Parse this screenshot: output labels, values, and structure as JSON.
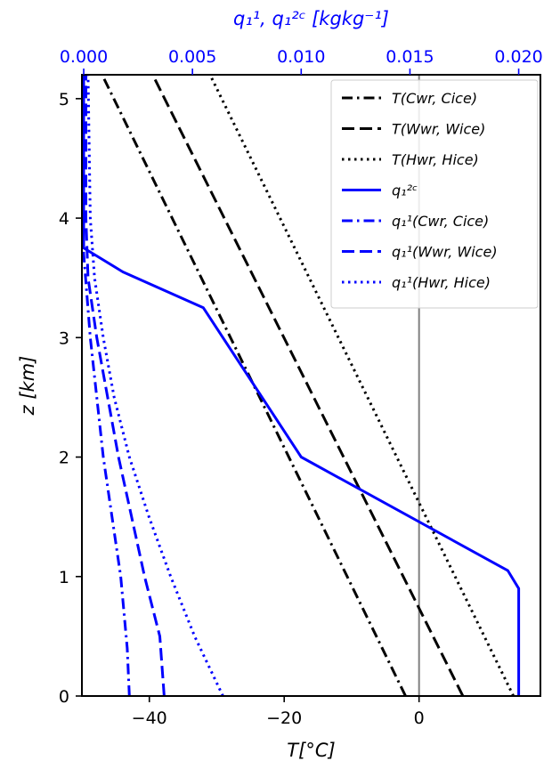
{
  "chart_data": {
    "type": "line",
    "xlabel": "T[°C]",
    "ylabel": "z [km]",
    "x2label": "q₁¹, q₁²ᶜ [kgkg⁻¹]",
    "xlim": [
      -50,
      18
    ],
    "ylim": [
      0,
      5.2
    ],
    "x2lim": [
      -8.3e-05,
      0.021
    ],
    "x_ticks": [
      "−40",
      "−20",
      "0"
    ],
    "x_tick_values": [
      -40,
      -20,
      0
    ],
    "y_ticks": [
      "0",
      "1",
      "2",
      "3",
      "4",
      "5"
    ],
    "y_tick_values": [
      0,
      1,
      2,
      3,
      4,
      5
    ],
    "x2_ticks": [
      "0.000",
      "0.005",
      "0.010",
      "0.015",
      "0.020"
    ],
    "x2_tick_values": [
      0.0,
      0.005,
      0.01,
      0.015,
      0.02
    ],
    "reference_line": {
      "axis": "x",
      "value": 0,
      "color": "#808080"
    },
    "legend": {
      "placement": "top-right"
    },
    "series": [
      {
        "name": "T(Cwr, Cice)",
        "axis": "bottom",
        "color": "#000000",
        "dash": "dashdot",
        "x": [
          -2,
          -47
        ],
        "y": [
          0,
          5.2
        ]
      },
      {
        "name": "T(Wwr, Wice)",
        "axis": "bottom",
        "color": "#000000",
        "dash": "dashed",
        "x": [
          6.5,
          -39.5
        ],
        "y": [
          0,
          5.2
        ]
      },
      {
        "name": "T(Hwr, Hice)",
        "axis": "bottom",
        "color": "#000000",
        "dash": "dotted",
        "x": [
          14,
          -31
        ],
        "y": [
          0,
          5.2
        ]
      },
      {
        "name": "q₁²ᶜ",
        "axis": "top",
        "color": "#0000ff",
        "dash": "solid",
        "x": [
          0.02,
          0.02,
          0.0195,
          0.01,
          0.0055,
          0.0018,
          0.0,
          0.0
        ],
        "y": [
          0,
          0.9,
          1.05,
          2.0,
          3.25,
          3.55,
          3.75,
          5.2
        ]
      },
      {
        "name": "q₁¹(Cwr, Cice)",
        "axis": "top",
        "color": "#0000ff",
        "dash": "dashdot",
        "x": [
          0.0021,
          0.002,
          0.0017,
          0.0013,
          0.0009,
          0.0006,
          0.0003,
          0.0,
          0.0
        ],
        "y": [
          0,
          0.4,
          1.0,
          1.5,
          2.0,
          2.5,
          3.0,
          3.7,
          5.2
        ]
      },
      {
        "name": "q₁¹(Wwr, Wice)",
        "axis": "top",
        "color": "#0000ff",
        "dash": "dashed",
        "x": [
          0.0037,
          0.0035,
          0.0028,
          0.0022,
          0.0016,
          0.0011,
          0.0006,
          0.0002,
          0.0001,
          0.0001
        ],
        "y": [
          0,
          0.5,
          1.0,
          1.5,
          2.0,
          2.5,
          3.0,
          3.5,
          4.0,
          5.2
        ]
      },
      {
        "name": "q₁¹(Hwr, Hice)",
        "axis": "top",
        "color": "#0000ff",
        "dash": "dotted",
        "x": [
          0.0064,
          0.0051,
          0.004,
          0.003,
          0.0021,
          0.0014,
          0.0009,
          0.0005,
          0.0003,
          0.0002
        ],
        "y": [
          0,
          0.5,
          1.0,
          1.5,
          2.0,
          2.5,
          3.0,
          3.5,
          4.0,
          5.2
        ]
      }
    ]
  }
}
